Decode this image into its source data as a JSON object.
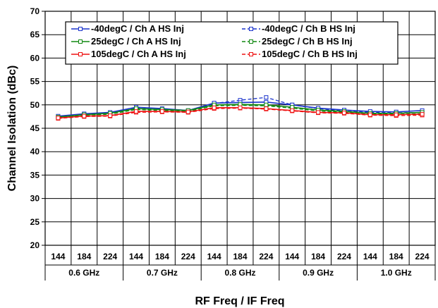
{
  "chart_data": {
    "type": "line",
    "ylabel": "Channel Isolation (dBc)",
    "xlabel": "RF Freq / IF Freq",
    "ylim": [
      20,
      70
    ],
    "ytick_step": 5,
    "yticks": [
      "20",
      "25",
      "30",
      "35",
      "40",
      "45",
      "50",
      "55",
      "60",
      "65",
      "70"
    ],
    "grid": true,
    "legend_position": "top",
    "x": [
      "144",
      "184",
      "224",
      "144",
      "184",
      "224",
      "144",
      "184",
      "224",
      "144",
      "184",
      "224",
      "144",
      "184",
      "224"
    ],
    "groups": [
      {
        "label": "0.6 GHz",
        "start": 0,
        "count": 3
      },
      {
        "label": "0.7 GHz",
        "start": 3,
        "count": 3
      },
      {
        "label": "0.8 GHz",
        "start": 6,
        "count": 3
      },
      {
        "label": "0.9 GHz",
        "start": 9,
        "count": 3
      },
      {
        "label": "1.0 GHz",
        "start": 12,
        "count": 3
      }
    ],
    "series": [
      {
        "name": "-40degC /  Ch A HS Inj",
        "color": "#1a33cc",
        "dash": false,
        "values": [
          47.6,
          48.1,
          48.4,
          49.5,
          49.2,
          48.8,
          50.4,
          50.5,
          50.6,
          50.0,
          49.3,
          48.9,
          48.6,
          48.5,
          48.8
        ]
      },
      {
        "name": "-40degC /  Ch B HS Inj",
        "color": "#1a33cc",
        "dash": true,
        "values": [
          47.4,
          48.0,
          48.2,
          49.3,
          49.0,
          48.7,
          50.3,
          51.0,
          51.6,
          50.0,
          49.2,
          48.7,
          48.4,
          48.3,
          48.4
        ]
      },
      {
        "name": "25degC /  Ch A HS Inj",
        "color": "#118811",
        "dash": false,
        "values": [
          47.4,
          47.9,
          48.2,
          49.2,
          49.0,
          48.8,
          50.0,
          50.1,
          50.0,
          49.5,
          48.9,
          48.6,
          48.2,
          48.2,
          48.4
        ]
      },
      {
        "name": "25degC /  Ch B HS Inj",
        "color": "#118811",
        "dash": true,
        "values": [
          47.3,
          47.8,
          48.0,
          49.0,
          48.8,
          48.6,
          49.8,
          49.9,
          49.8,
          49.3,
          48.7,
          48.4,
          48.0,
          48.0,
          48.1
        ]
      },
      {
        "name": "105degC /  Ch A HS Inj",
        "color": "#ee1111",
        "dash": false,
        "values": [
          47.2,
          47.6,
          47.7,
          48.6,
          48.6,
          48.5,
          49.4,
          49.4,
          49.2,
          48.8,
          48.4,
          48.3,
          47.9,
          47.9,
          48.0
        ]
      },
      {
        "name": "105degC /  Ch B HS Inj",
        "color": "#ee1111",
        "dash": true,
        "values": [
          47.1,
          47.5,
          47.6,
          48.4,
          48.5,
          48.4,
          49.2,
          49.3,
          49.1,
          48.7,
          48.3,
          48.2,
          47.8,
          47.7,
          47.8
        ]
      }
    ],
    "legend_order": [
      0,
      1,
      2,
      3,
      4,
      5
    ]
  }
}
